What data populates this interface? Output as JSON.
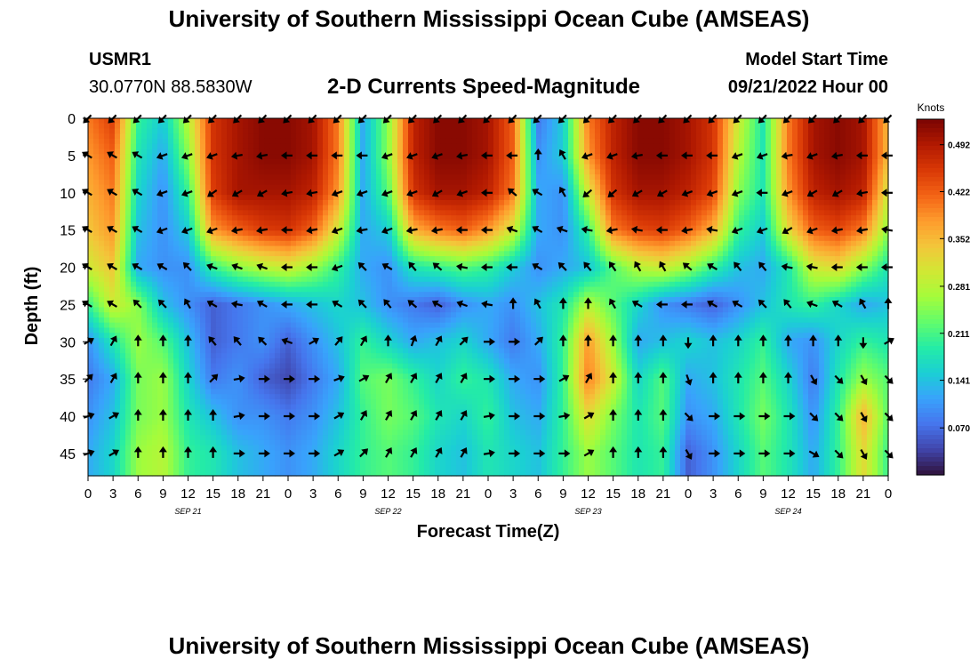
{
  "header": {
    "title": "University of Southern Mississippi Ocean Cube (AMSEAS)",
    "station_id": "USMR1",
    "coords": "30.0770N  88.5830W",
    "subtitle": "2-D Currents Speed-Magnitude",
    "model_label": "Model Start Time",
    "model_time": "09/21/2022 Hour 00"
  },
  "footer": {
    "title": "University of Southern Mississippi Ocean Cube (AMSEAS)"
  },
  "chart_data": {
    "type": "heatmap",
    "xlabel": "Forecast Time(Z)",
    "ylabel": "Depth (ft)",
    "colorbar_label": "Knots",
    "x_range_hours": [
      0,
      96
    ],
    "y_range_ft": [
      0,
      48
    ],
    "x_ticks": [
      "0",
      "3",
      "6",
      "9",
      "12",
      "15",
      "18",
      "21",
      "0",
      "3",
      "6",
      "9",
      "12",
      "15",
      "18",
      "21",
      "0",
      "3",
      "6",
      "9",
      "12",
      "15",
      "18",
      "21",
      "0",
      "3",
      "6",
      "9",
      "12",
      "15",
      "18",
      "21",
      "0"
    ],
    "date_labels": [
      {
        "hour": 12,
        "label": "SEP 21"
      },
      {
        "hour": 36,
        "label": "SEP 22"
      },
      {
        "hour": 60,
        "label": "SEP 23"
      },
      {
        "hour": 84,
        "label": "SEP 24"
      }
    ],
    "y_ticks": [
      0,
      5,
      10,
      15,
      20,
      25,
      30,
      35,
      40,
      45
    ],
    "color_ticks": [
      0.07,
      0.141,
      0.211,
      0.281,
      0.352,
      0.422,
      0.492
    ],
    "color_tick_labels": [
      "0.070",
      "0.141",
      "0.211",
      "0.281",
      "0.352",
      "0.422",
      "0.492"
    ],
    "color_range": [
      0.0,
      0.53
    ],
    "colors": {
      "scale": [
        "#30123b",
        "#4145ab",
        "#4675ed",
        "#39a2fc",
        "#1bcfd4",
        "#24eca6",
        "#61fc6c",
        "#a4fc3b",
        "#d1e834",
        "#f3c63a",
        "#fe9b2d",
        "#f36315",
        "#d93806",
        "#b11901",
        "#7a0403"
      ]
    },
    "depths_ft": [
      0,
      5,
      10,
      15,
      20,
      25,
      30,
      35,
      40,
      45
    ],
    "hours": [
      0,
      3,
      6,
      9,
      12,
      15,
      18,
      21,
      24,
      27,
      30,
      33,
      36,
      39,
      42,
      45,
      48,
      51,
      54,
      57,
      60,
      63,
      66,
      69,
      72,
      75,
      78,
      81,
      84,
      87,
      90,
      93,
      96
    ],
    "speed_knots": [
      [
        0.4,
        0.45,
        0.2,
        0.15,
        0.28,
        0.46,
        0.5,
        0.52,
        0.52,
        0.5,
        0.4,
        0.12,
        0.25,
        0.48,
        0.52,
        0.52,
        0.5,
        0.42,
        0.08,
        0.15,
        0.4,
        0.48,
        0.52,
        0.52,
        0.5,
        0.46,
        0.3,
        0.18,
        0.4,
        0.5,
        0.52,
        0.5,
        0.35
      ],
      [
        0.38,
        0.42,
        0.18,
        0.12,
        0.25,
        0.46,
        0.5,
        0.52,
        0.52,
        0.5,
        0.4,
        0.12,
        0.25,
        0.48,
        0.52,
        0.52,
        0.5,
        0.42,
        0.1,
        0.15,
        0.38,
        0.48,
        0.52,
        0.52,
        0.5,
        0.46,
        0.28,
        0.18,
        0.4,
        0.5,
        0.52,
        0.5,
        0.35
      ],
      [
        0.36,
        0.4,
        0.16,
        0.1,
        0.2,
        0.45,
        0.5,
        0.5,
        0.5,
        0.48,
        0.38,
        0.12,
        0.22,
        0.46,
        0.5,
        0.5,
        0.48,
        0.4,
        0.12,
        0.1,
        0.3,
        0.46,
        0.5,
        0.5,
        0.48,
        0.44,
        0.25,
        0.18,
        0.38,
        0.48,
        0.5,
        0.48,
        0.3
      ],
      [
        0.34,
        0.38,
        0.14,
        0.1,
        0.15,
        0.38,
        0.42,
        0.45,
        0.46,
        0.42,
        0.3,
        0.12,
        0.15,
        0.36,
        0.4,
        0.42,
        0.38,
        0.3,
        0.12,
        0.1,
        0.2,
        0.4,
        0.44,
        0.45,
        0.42,
        0.36,
        0.2,
        0.15,
        0.32,
        0.42,
        0.44,
        0.4,
        0.25
      ],
      [
        0.3,
        0.34,
        0.12,
        0.1,
        0.1,
        0.2,
        0.25,
        0.28,
        0.3,
        0.26,
        0.2,
        0.12,
        0.1,
        0.18,
        0.2,
        0.22,
        0.2,
        0.15,
        0.1,
        0.12,
        0.14,
        0.22,
        0.28,
        0.3,
        0.26,
        0.2,
        0.14,
        0.12,
        0.18,
        0.3,
        0.32,
        0.25,
        0.18
      ],
      [
        0.2,
        0.3,
        0.25,
        0.14,
        0.1,
        0.06,
        0.08,
        0.1,
        0.12,
        0.14,
        0.16,
        0.14,
        0.1,
        0.08,
        0.06,
        0.1,
        0.12,
        0.1,
        0.14,
        0.18,
        0.28,
        0.22,
        0.16,
        0.1,
        0.08,
        0.06,
        0.1,
        0.14,
        0.18,
        0.2,
        0.16,
        0.12,
        0.14
      ],
      [
        0.1,
        0.18,
        0.26,
        0.22,
        0.14,
        0.06,
        0.08,
        0.1,
        0.06,
        0.1,
        0.14,
        0.2,
        0.16,
        0.12,
        0.14,
        0.16,
        0.12,
        0.08,
        0.12,
        0.2,
        0.38,
        0.26,
        0.12,
        0.14,
        0.16,
        0.14,
        0.16,
        0.2,
        0.12,
        0.1,
        0.16,
        0.2,
        0.18
      ],
      [
        0.08,
        0.12,
        0.24,
        0.26,
        0.16,
        0.08,
        0.1,
        0.06,
        0.04,
        0.08,
        0.12,
        0.22,
        0.24,
        0.2,
        0.16,
        0.2,
        0.18,
        0.12,
        0.1,
        0.2,
        0.4,
        0.3,
        0.16,
        0.22,
        0.12,
        0.14,
        0.18,
        0.22,
        0.16,
        0.08,
        0.18,
        0.26,
        0.22
      ],
      [
        0.1,
        0.14,
        0.24,
        0.26,
        0.18,
        0.14,
        0.1,
        0.1,
        0.08,
        0.1,
        0.14,
        0.2,
        0.24,
        0.22,
        0.18,
        0.16,
        0.2,
        0.14,
        0.12,
        0.2,
        0.32,
        0.24,
        0.18,
        0.22,
        0.1,
        0.12,
        0.18,
        0.24,
        0.18,
        0.1,
        0.2,
        0.36,
        0.22
      ],
      [
        0.12,
        0.16,
        0.26,
        0.28,
        0.2,
        0.18,
        0.14,
        0.12,
        0.1,
        0.12,
        0.16,
        0.2,
        0.22,
        0.2,
        0.16,
        0.14,
        0.18,
        0.16,
        0.14,
        0.2,
        0.26,
        0.22,
        0.18,
        0.2,
        0.06,
        0.1,
        0.16,
        0.22,
        0.18,
        0.12,
        0.2,
        0.32,
        0.2
      ]
    ],
    "direction_deg": [
      [
        225,
        225,
        225,
        225,
        225,
        225,
        225,
        225,
        225,
        225,
        225,
        225,
        225,
        225,
        225,
        225,
        225,
        225,
        225,
        225,
        225,
        225,
        225,
        225,
        225,
        225,
        225,
        225,
        225,
        225,
        225,
        225,
        225
      ],
      [
        300,
        300,
        300,
        250,
        250,
        250,
        260,
        260,
        270,
        270,
        270,
        270,
        250,
        250,
        250,
        260,
        270,
        270,
        0,
        330,
        250,
        250,
        260,
        270,
        270,
        270,
        250,
        250,
        260,
        250,
        260,
        270,
        270
      ],
      [
        300,
        300,
        300,
        250,
        250,
        235,
        240,
        240,
        260,
        260,
        250,
        250,
        250,
        250,
        240,
        250,
        270,
        310,
        300,
        330,
        230,
        230,
        240,
        240,
        250,
        250,
        250,
        270,
        250,
        240,
        240,
        260,
        270
      ],
      [
        300,
        300,
        300,
        250,
        250,
        250,
        260,
        260,
        270,
        260,
        250,
        260,
        250,
        260,
        260,
        270,
        270,
        290,
        300,
        290,
        280,
        260,
        280,
        270,
        260,
        280,
        250,
        250,
        240,
        250,
        260,
        260,
        280
      ],
      [
        300,
        300,
        300,
        300,
        315,
        290,
        290,
        290,
        270,
        270,
        250,
        315,
        300,
        320,
        310,
        280,
        270,
        270,
        300,
        315,
        320,
        325,
        330,
        330,
        310,
        300,
        320,
        320,
        280,
        280,
        270,
        270,
        270
      ],
      [
        300,
        300,
        315,
        315,
        330,
        300,
        280,
        300,
        270,
        270,
        300,
        315,
        320,
        310,
        300,
        290,
        280,
        0,
        330,
        0,
        0,
        330,
        300,
        270,
        270,
        300,
        300,
        315,
        320,
        290,
        300,
        330,
        0
      ],
      [
        60,
        30,
        0,
        0,
        0,
        320,
        320,
        315,
        290,
        60,
        40,
        30,
        0,
        20,
        30,
        45,
        90,
        90,
        45,
        0,
        0,
        0,
        0,
        0,
        180,
        0,
        0,
        0,
        0,
        0,
        0,
        180,
        60
      ],
      [
        45,
        30,
        0,
        0,
        0,
        45,
        80,
        90,
        90,
        90,
        70,
        60,
        30,
        30,
        30,
        30,
        90,
        90,
        90,
        60,
        30,
        0,
        0,
        0,
        160,
        0,
        0,
        0,
        0,
        150,
        135,
        150,
        135
      ],
      [
        70,
        60,
        0,
        0,
        0,
        0,
        80,
        90,
        90,
        90,
        60,
        30,
        30,
        30,
        30,
        30,
        80,
        90,
        90,
        80,
        60,
        0,
        0,
        0,
        135,
        90,
        90,
        90,
        90,
        135,
        135,
        150,
        135
      ],
      [
        70,
        60,
        0,
        0,
        0,
        0,
        90,
        90,
        90,
        90,
        60,
        45,
        30,
        30,
        30,
        30,
        80,
        90,
        90,
        90,
        60,
        0,
        0,
        0,
        150,
        90,
        90,
        90,
        90,
        120,
        135,
        150,
        135
      ]
    ]
  }
}
